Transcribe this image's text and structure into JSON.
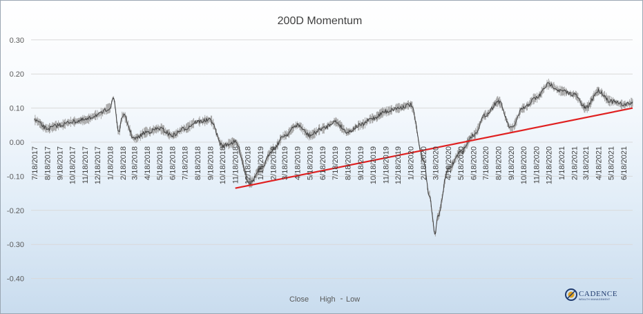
{
  "chart_data": {
    "type": "line",
    "title": "200D Momentum",
    "x_tick_labels": [
      "7/18/2017",
      "8/18/2017",
      "9/18/2017",
      "10/18/2017",
      "11/18/2017",
      "12/18/2017",
      "1/18/2018",
      "2/18/2018",
      "3/18/2018",
      "4/18/2018",
      "5/18/2018",
      "6/18/2018",
      "7/18/2018",
      "8/18/2018",
      "9/18/2018",
      "10/18/2018",
      "11/18/2018",
      "12/18/2018",
      "1/18/2019",
      "2/18/2019",
      "3/18/2019",
      "4/18/2019",
      "5/18/2019",
      "6/18/2019",
      "7/18/2019",
      "8/18/2019",
      "9/18/2019",
      "10/18/2019",
      "11/18/2019",
      "12/18/2019",
      "1/18/2020",
      "2/18/2020",
      "3/18/2020",
      "4/18/2020",
      "5/18/2020",
      "6/18/2020",
      "7/18/2020",
      "8/18/2020",
      "9/18/2020",
      "10/18/2020",
      "11/18/2020",
      "12/18/2020",
      "1/18/2021",
      "2/18/2021",
      "3/18/2021",
      "4/18/2021",
      "5/18/2021",
      "6/18/2021"
    ],
    "y_tick_labels": [
      "0.30",
      "0.20",
      "0.10",
      "0.00",
      "-0.10",
      "-0.20",
      "-0.30",
      "-0.40"
    ],
    "ylim": [
      -0.4,
      0.3
    ],
    "grid": true,
    "legend": [
      "Close",
      "High",
      "Low"
    ],
    "legend_position": "bottom",
    "series": [
      {
        "name": "Close",
        "x": [
          "2017-07-18",
          "2017-08-18",
          "2017-09-18",
          "2017-10-18",
          "2017-11-18",
          "2017-12-18",
          "2018-01-18",
          "2018-01-26",
          "2018-02-08",
          "2018-02-18",
          "2018-03-18",
          "2018-04-18",
          "2018-05-18",
          "2018-06-18",
          "2018-07-18",
          "2018-08-18",
          "2018-09-18",
          "2018-10-18",
          "2018-11-18",
          "2018-12-24",
          "2019-01-18",
          "2019-02-18",
          "2019-03-18",
          "2019-04-18",
          "2019-05-18",
          "2019-06-18",
          "2019-07-18",
          "2019-08-18",
          "2019-09-18",
          "2019-10-18",
          "2019-11-18",
          "2019-12-18",
          "2020-01-18",
          "2020-02-18",
          "2020-03-02",
          "2020-03-18",
          "2020-03-23",
          "2020-04-18",
          "2020-05-18",
          "2020-06-18",
          "2020-07-18",
          "2020-08-18",
          "2020-09-18",
          "2020-10-18",
          "2020-11-18",
          "2020-12-18",
          "2021-01-18",
          "2021-02-18",
          "2021-03-18",
          "2021-04-18",
          "2021-05-18",
          "2021-06-18",
          "2021-07-10"
        ],
        "values": [
          0.065,
          0.04,
          0.05,
          0.06,
          0.065,
          0.08,
          0.1,
          0.13,
          0.03,
          0.08,
          0.01,
          0.03,
          0.04,
          0.02,
          0.04,
          0.06,
          0.065,
          -0.01,
          0.0,
          -0.12,
          -0.08,
          -0.02,
          0.02,
          0.05,
          0.02,
          0.04,
          0.06,
          0.03,
          0.05,
          0.07,
          0.09,
          0.1,
          0.11,
          -0.05,
          -0.15,
          -0.27,
          -0.22,
          -0.08,
          -0.03,
          0.02,
          0.08,
          0.12,
          0.04,
          0.1,
          0.13,
          0.17,
          0.15,
          0.14,
          0.1,
          0.15,
          0.12,
          0.11,
          0.115
        ]
      },
      {
        "name": "Trend line",
        "x": [
          "2018-11-18",
          "2021-07-10"
        ],
        "values": [
          -0.135,
          0.1
        ]
      }
    ]
  },
  "brand": {
    "name": "CADENCE",
    "subtitle": "WEALTH MANAGEMENT"
  },
  "colors": {
    "trend_line": "#e02020",
    "series": "#404040",
    "band": "#a6a6a6",
    "brand": "#1f3a6e",
    "brand_accent": "#e0a020"
  }
}
